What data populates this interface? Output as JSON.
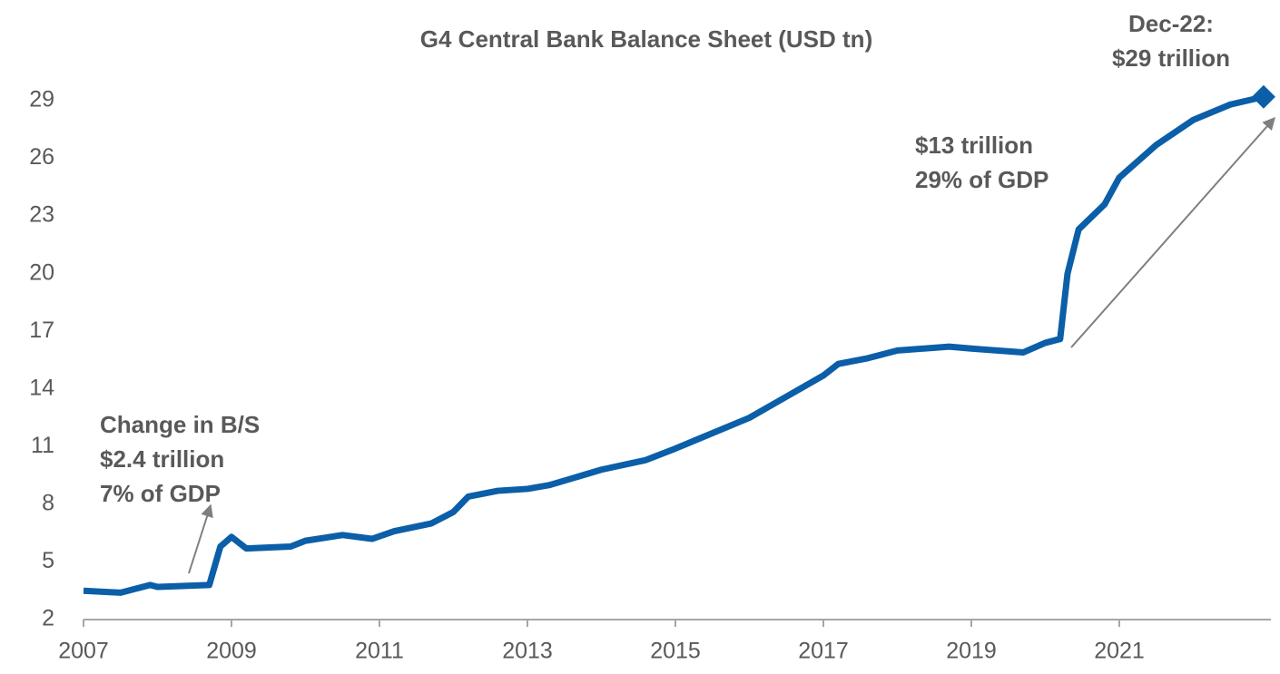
{
  "chart_data": {
    "type": "line",
    "title": "G4 Central Bank Balance Sheet (USD tn)",
    "x": [
      2007.0,
      2007.5,
      2007.9,
      2008.0,
      2008.7,
      2008.85,
      2009.0,
      2009.2,
      2009.8,
      2010.0,
      2010.5,
      2010.9,
      2011.2,
      2011.7,
      2012.0,
      2012.2,
      2012.6,
      2013.0,
      2013.3,
      2014.0,
      2014.6,
      2015.0,
      2015.5,
      2016.0,
      2016.5,
      2017.0,
      2017.2,
      2017.6,
      2018.0,
      2018.7,
      2019.0,
      2019.7,
      2020.0,
      2020.2,
      2020.3,
      2020.45,
      2020.8,
      2021.0,
      2021.5,
      2022.0,
      2022.5,
      2022.95
    ],
    "values": [
      3.5,
      3.4,
      3.8,
      3.7,
      3.8,
      5.8,
      6.3,
      5.7,
      5.8,
      6.1,
      6.4,
      6.2,
      6.6,
      7.0,
      7.6,
      8.4,
      8.7,
      8.8,
      9.0,
      9.8,
      10.3,
      10.9,
      11.7,
      12.5,
      13.6,
      14.7,
      15.3,
      15.6,
      16.0,
      16.2,
      16.1,
      15.9,
      16.4,
      16.6,
      20.0,
      22.3,
      23.6,
      25.0,
      26.7,
      28.0,
      28.8,
      29.2
    ],
    "color": "#0b5ea8",
    "xlim": [
      2007,
      2023
    ],
    "xticks": [
      2007,
      2009,
      2011,
      2013,
      2015,
      2017,
      2019,
      2021
    ],
    "ylim": [
      2,
      29
    ],
    "yticks": [
      2,
      5,
      8,
      11,
      14,
      17,
      20,
      23,
      26,
      29
    ],
    "grid": false,
    "annotations": [
      [
        "Dec-22:",
        "$29 trillion"
      ],
      [
        "$13 trillion",
        "29% of GDP"
      ],
      [
        "Change in B/S",
        "$2.4 trillion",
        "7% of GDP"
      ]
    ]
  }
}
